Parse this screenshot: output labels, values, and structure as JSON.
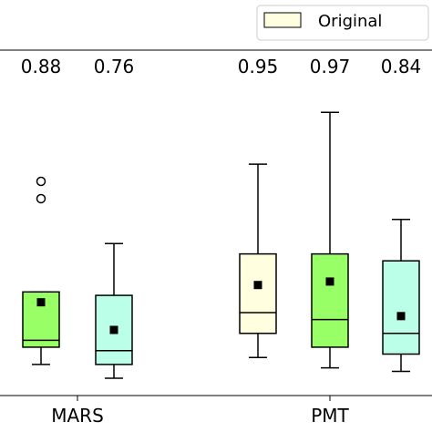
{
  "chart_data": {
    "type": "box",
    "legend": {
      "position": "top-right",
      "entries": [
        {
          "label": "Original",
          "color": "#ffffe0"
        }
      ]
    },
    "categories": [
      "MARS",
      "PMT"
    ],
    "ylim": [
      0.0,
      1.0
    ],
    "grid": false,
    "boxes": [
      {
        "category": "MARS",
        "label": "0.88",
        "color": "#99ff66",
        "whislo": 0.09,
        "q1": 0.14,
        "med": 0.16,
        "q3": 0.3,
        "whishi": 0.3,
        "mean": 0.27,
        "fliers": [
          0.62,
          0.57
        ]
      },
      {
        "category": "MARS",
        "label": "0.76",
        "color": "#bbffe8",
        "whislo": 0.05,
        "q1": 0.09,
        "med": 0.13,
        "q3": 0.29,
        "whishi": 0.44,
        "mean": 0.19,
        "fliers": []
      },
      {
        "category": "PMT",
        "label": "0.95",
        "color": "#ffffe0",
        "whislo": 0.11,
        "q1": 0.18,
        "med": 0.24,
        "q3": 0.41,
        "whishi": 0.67,
        "mean": 0.32,
        "fliers": []
      },
      {
        "category": "PMT",
        "label": "0.97",
        "color": "#99ff66",
        "whislo": 0.08,
        "q1": 0.14,
        "med": 0.22,
        "q3": 0.41,
        "whishi": 0.82,
        "mean": 0.33,
        "fliers": []
      },
      {
        "category": "PMT",
        "label": "0.84",
        "color": "#bbffe8",
        "whislo": 0.07,
        "q1": 0.12,
        "med": 0.18,
        "q3": 0.39,
        "whishi": 0.51,
        "mean": 0.23,
        "fliers": []
      }
    ]
  }
}
